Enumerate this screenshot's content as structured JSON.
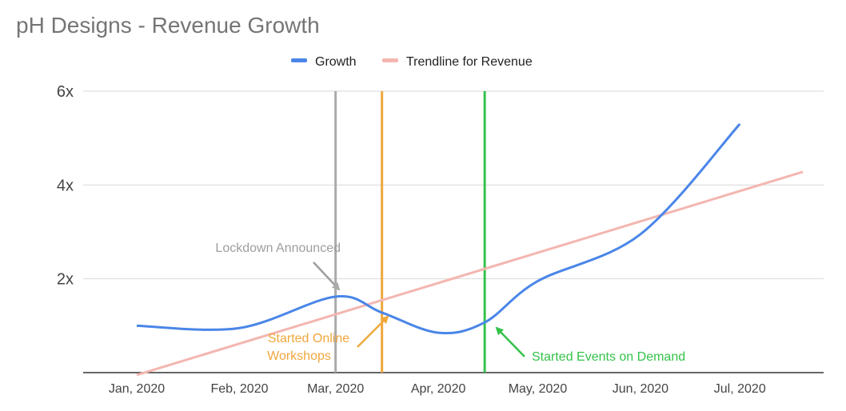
{
  "chart_data": {
    "type": "line",
    "title": "pH Designs - Revenue Growth",
    "xlabel": "",
    "ylabel": "",
    "x_categories": [
      "Jan, 2020",
      "Feb, 2020",
      "Mar, 2020",
      "Apr, 2020",
      "May, 2020",
      "Jun, 2020",
      "Jul, 2020"
    ],
    "x_range": [
      "2020-01-01",
      "2020-07-20"
    ],
    "ylim": [
      0,
      6
    ],
    "yticks": [
      {
        "value": 2,
        "label": "2x"
      },
      {
        "value": 4,
        "label": "4x"
      },
      {
        "value": 6,
        "label": "6x"
      }
    ],
    "grid": true,
    "legend_position": "top-center",
    "series": [
      {
        "name": "Growth",
        "color": "#4a86e8",
        "points": [
          {
            "x": "2020-01-01",
            "y": 1.0
          },
          {
            "x": "2020-02-01",
            "y": 0.95
          },
          {
            "x": "2020-03-01",
            "y": 1.62
          },
          {
            "x": "2020-03-15",
            "y": 1.28
          },
          {
            "x": "2020-04-01",
            "y": 0.85
          },
          {
            "x": "2020-04-15",
            "y": 1.07
          },
          {
            "x": "2020-05-01",
            "y": 1.95
          },
          {
            "x": "2020-06-01",
            "y": 2.95
          },
          {
            "x": "2020-07-01",
            "y": 5.3
          }
        ]
      },
      {
        "name": "Trendline for Revenue",
        "color": "#f4b6b0",
        "type": "trendline",
        "points": [
          {
            "x": "2020-01-01",
            "y": -0.05
          },
          {
            "x": "2020-07-20",
            "y": 4.28
          }
        ]
      }
    ],
    "vertical_markers": [
      {
        "x": "2020-03-01",
        "color": "#aaaaaa"
      },
      {
        "x": "2020-03-15",
        "color": "#f0a73c"
      },
      {
        "x": "2020-04-15",
        "color": "#34c24a"
      }
    ],
    "annotations": [
      {
        "text": [
          "Lockdown Announced"
        ],
        "color": "#9e9e9e"
      },
      {
        "text": [
          "Started Online",
          "Workshops"
        ],
        "color": "#f0a73c"
      },
      {
        "text": [
          "Started Events on Demand"
        ],
        "color": "#34c24a"
      }
    ]
  }
}
